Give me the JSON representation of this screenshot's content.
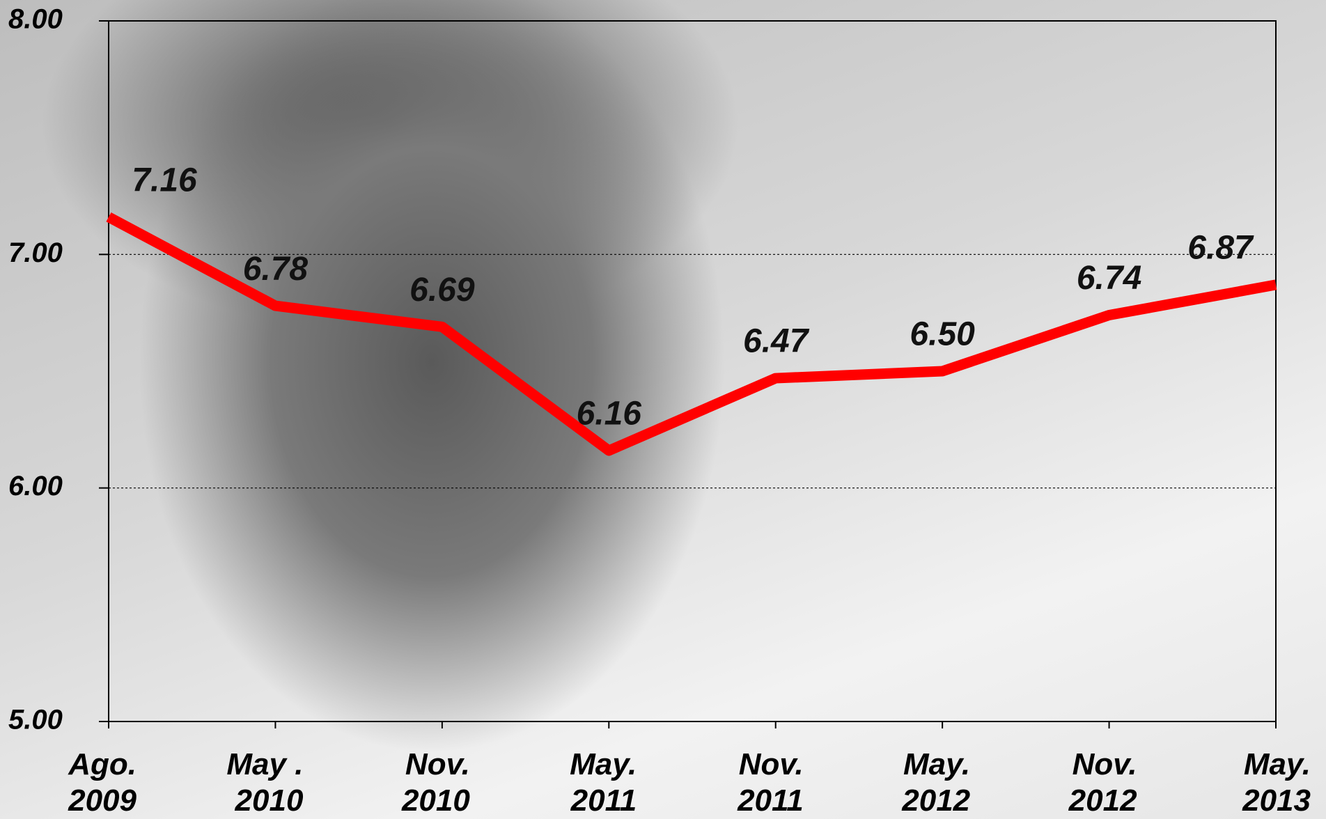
{
  "chart_data": {
    "type": "line",
    "categories": [
      "Ago.\n2009",
      "May .\n2010",
      "Nov.\n2010",
      "May.\n2011",
      "Nov.\n2011",
      "May.\n2012",
      "Nov.\n2012",
      "May.\n2013"
    ],
    "series": [
      {
        "color": "#ff0000",
        "values": [
          7.16,
          6.78,
          6.69,
          6.16,
          6.47,
          6.5,
          6.74,
          6.87
        ],
        "value_labels": [
          "7.16",
          "6.78",
          "6.69",
          "6.16",
          "6.47",
          "6.50",
          "6.74",
          "6.87"
        ]
      }
    ],
    "ylim": [
      5,
      8
    ],
    "yticks": [
      {
        "value": 5,
        "label": "5.00"
      },
      {
        "value": 6,
        "label": "6.00"
      },
      {
        "value": 7,
        "label": "7.00"
      },
      {
        "value": 8,
        "label": "8.00"
      }
    ],
    "grid": true
  }
}
